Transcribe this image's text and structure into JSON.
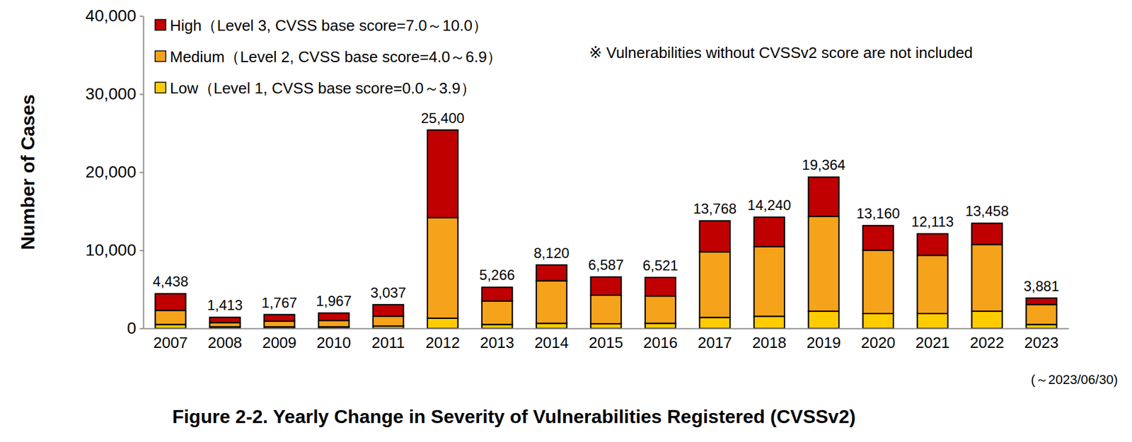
{
  "chart_data": {
    "type": "bar",
    "stacked": true,
    "grid": false,
    "legend": "top-left",
    "title": "Figure 2-2. Yearly Change in Severity of Vulnerabilities Registered (CVSSv2)",
    "y_label": "Number of Cases",
    "note": "※ Vulnerabilities without CVSSv2 score are not included",
    "x_annotation": "(～2023/06/30)",
    "categories": [
      "2007",
      "2008",
      "2009",
      "2010",
      "2011",
      "2012",
      "2013",
      "2014",
      "2015",
      "2016",
      "2017",
      "2018",
      "2019",
      "2020",
      "2021",
      "2022",
      "2023"
    ],
    "series": [
      {
        "name": "High（Level 3, CVSS base score=7.0～10.0）",
        "color": "#c00000",
        "values": [
          2138,
          673,
          842,
          967,
          1467,
          11230,
          1766,
          2020,
          2337,
          2371,
          3968,
          3780,
          5014,
          3160,
          2763,
          2718,
          831
        ]
      },
      {
        "name": "Medium（Level 2, CVSS base score=4.0～6.9）",
        "color": "#f5a31a",
        "values": [
          1800,
          540,
          725,
          800,
          1270,
          12870,
          3000,
          5450,
          3650,
          3500,
          8400,
          8910,
          12150,
          8100,
          7450,
          8540,
          2550
        ]
      },
      {
        "name": "Low（Level 1, CVSS base score=0.0～3.9）",
        "color": "#ffcc00",
        "values": [
          500,
          200,
          200,
          200,
          300,
          1300,
          500,
          650,
          600,
          650,
          1400,
          1550,
          2200,
          1900,
          1900,
          2200,
          500
        ]
      }
    ],
    "totals": [
      4438,
      1413,
      1767,
      1967,
      3037,
      25400,
      5266,
      8120,
      6587,
      6521,
      13768,
      14240,
      19364,
      13160,
      12113,
      13458,
      3881
    ],
    "total_labels": [
      "4,438",
      "1,413",
      "1,767",
      "1,967",
      "3,037",
      "25,400",
      "5,266",
      "8,120",
      "6,587",
      "6,521",
      "13,768",
      "14,240",
      "19,364",
      "13,160",
      "12,113",
      "13,458",
      "3,881"
    ],
    "ylim": [
      0,
      40000
    ],
    "yticks": [
      0,
      {
        "value": 10000,
        "label": "10,000"
      },
      {
        "value": 20000,
        "label": "20,000"
      },
      {
        "value": 30000,
        "label": "30,000"
      },
      {
        "value": 40000,
        "label": "40,000"
      }
    ]
  }
}
